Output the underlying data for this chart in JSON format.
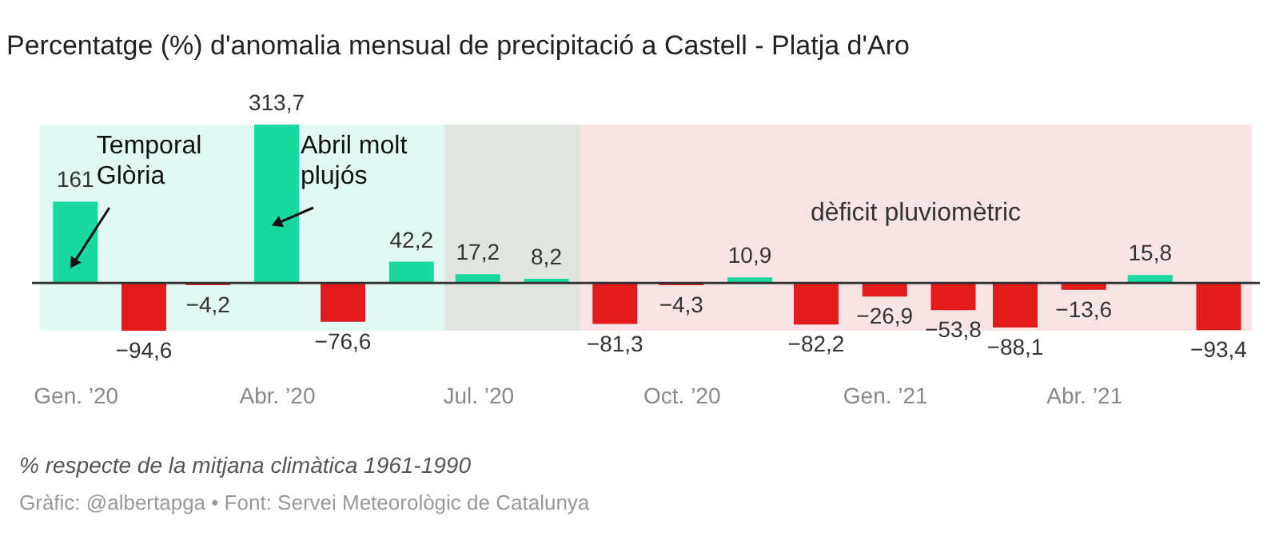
{
  "chart_data": {
    "type": "bar",
    "title": "Percentatge (%) d'anomalia mensual de precipitació a Castell - Platja d'Aro",
    "x": [
      "2020-01",
      "2020-02",
      "2020-03",
      "2020-04",
      "2020-05",
      "2020-06",
      "2020-07",
      "2020-08",
      "2020-09",
      "2020-10",
      "2020-11",
      "2020-12",
      "2021-01",
      "2021-02",
      "2021-03",
      "2021-04",
      "2021-05",
      "2021-06"
    ],
    "values": [
      161,
      -94.6,
      -4.2,
      313.7,
      -76.6,
      42.2,
      17.2,
      8.2,
      -81.3,
      -4.3,
      10.9,
      -82.2,
      -26.9,
      -53.8,
      -88.1,
      -13.6,
      15.8,
      -93.4
    ],
    "value_labels": [
      "161",
      "−94,6",
      "−4,2",
      "313,7",
      "−76,6",
      "42,2",
      "17,2",
      "8,2",
      "−81,3",
      "−4,3",
      "10,9",
      "−82,2",
      "−26,9",
      "−53,8",
      "−88,1",
      "−13,6",
      "15,8",
      "−93,4"
    ],
    "colors": [
      "#19d9a1",
      "#e31a1c",
      "#e31a1c",
      "#19d9a1",
      "#e31a1c",
      "#19d9a1",
      "#19d9a1",
      "#19d9a1",
      "#e31a1c",
      "#e31a1c",
      "#19d9a1",
      "#e31a1c",
      "#e31a1c",
      "#e31a1c",
      "#e31a1c",
      "#e31a1c",
      "#19d9a1",
      "#e31a1c"
    ],
    "xlim": [
      "2019-12-16",
      "2021-06-16"
    ],
    "xticks": [
      {
        "value": "2020-01",
        "label": "Gen. ’20"
      },
      {
        "value": "2020-04",
        "label": "Abr. ’20"
      },
      {
        "value": "2020-07",
        "label": "Jul. ’20"
      },
      {
        "value": "2020-10",
        "label": "Oct. ’20"
      },
      {
        "value": "2021-01",
        "label": "Gen. ’21"
      },
      {
        "value": "2021-04",
        "label": "Abr. ’21"
      }
    ],
    "tick_labels": "x",
    "bands": [
      {
        "axis": "x",
        "from": "2019-12-16",
        "to": "2020-06-16",
        "label": null,
        "color": "#e2f8f2"
      },
      {
        "axis": "x",
        "from": "2020-06-16",
        "to": "2020-08-16",
        "label": null,
        "color": "#e1e5e0"
      },
      {
        "axis": "x",
        "from": "2020-08-16",
        "to": "2021-06-16",
        "label": "dèficit pluviomètric",
        "color": "#f8e4e4"
      }
    ],
    "annotations": [
      {
        "text": "Temporal\nGlòria",
        "x": "2020-01",
        "y": 41
      },
      {
        "text": "Abril molt\nplujós",
        "x": "2020-04",
        "y": 119
      },
      "% respecte de la mitjana climàtica 1961-1990",
      "Gràfic: @albertapga • Font: Servei Meteorològic de Catalunya"
    ]
  }
}
